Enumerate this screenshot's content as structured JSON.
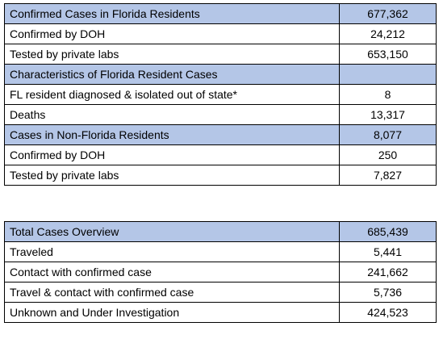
{
  "colors": {
    "header_fill": "#b4c6e7",
    "border": "#000000",
    "background": "#ffffff"
  },
  "table1": {
    "rows": [
      {
        "label": "Confirmed Cases in Florida Residents",
        "value": "677,362",
        "highlight": true
      },
      {
        "label": "Confirmed by DOH",
        "value": "24,212",
        "highlight": false
      },
      {
        "label": "Tested by private labs",
        "value": "653,150",
        "highlight": false
      },
      {
        "label": "Characteristics of Florida Resident Cases",
        "value": "",
        "highlight": true
      },
      {
        "label": "FL resident diagnosed & isolated out of state*",
        "value": "8",
        "highlight": false
      },
      {
        "label": "Deaths",
        "value": "13,317",
        "highlight": false
      },
      {
        "label": "Cases in Non-Florida Residents",
        "value": "8,077",
        "highlight": true
      },
      {
        "label": "Confirmed by DOH",
        "value": "250",
        "highlight": false
      },
      {
        "label": "Tested by private labs",
        "value": "7,827",
        "highlight": false
      }
    ]
  },
  "table2": {
    "rows": [
      {
        "label": "Total Cases Overview",
        "value": "685,439",
        "highlight": true
      },
      {
        "label": "Traveled",
        "value": "5,441",
        "highlight": false
      },
      {
        "label": "Contact with confirmed case",
        "value": "241,662",
        "highlight": false
      },
      {
        "label": "Travel & contact with confirmed case",
        "value": "5,736",
        "highlight": false
      },
      {
        "label": "Unknown and Under Investigation",
        "value": "424,523",
        "highlight": false
      }
    ]
  }
}
